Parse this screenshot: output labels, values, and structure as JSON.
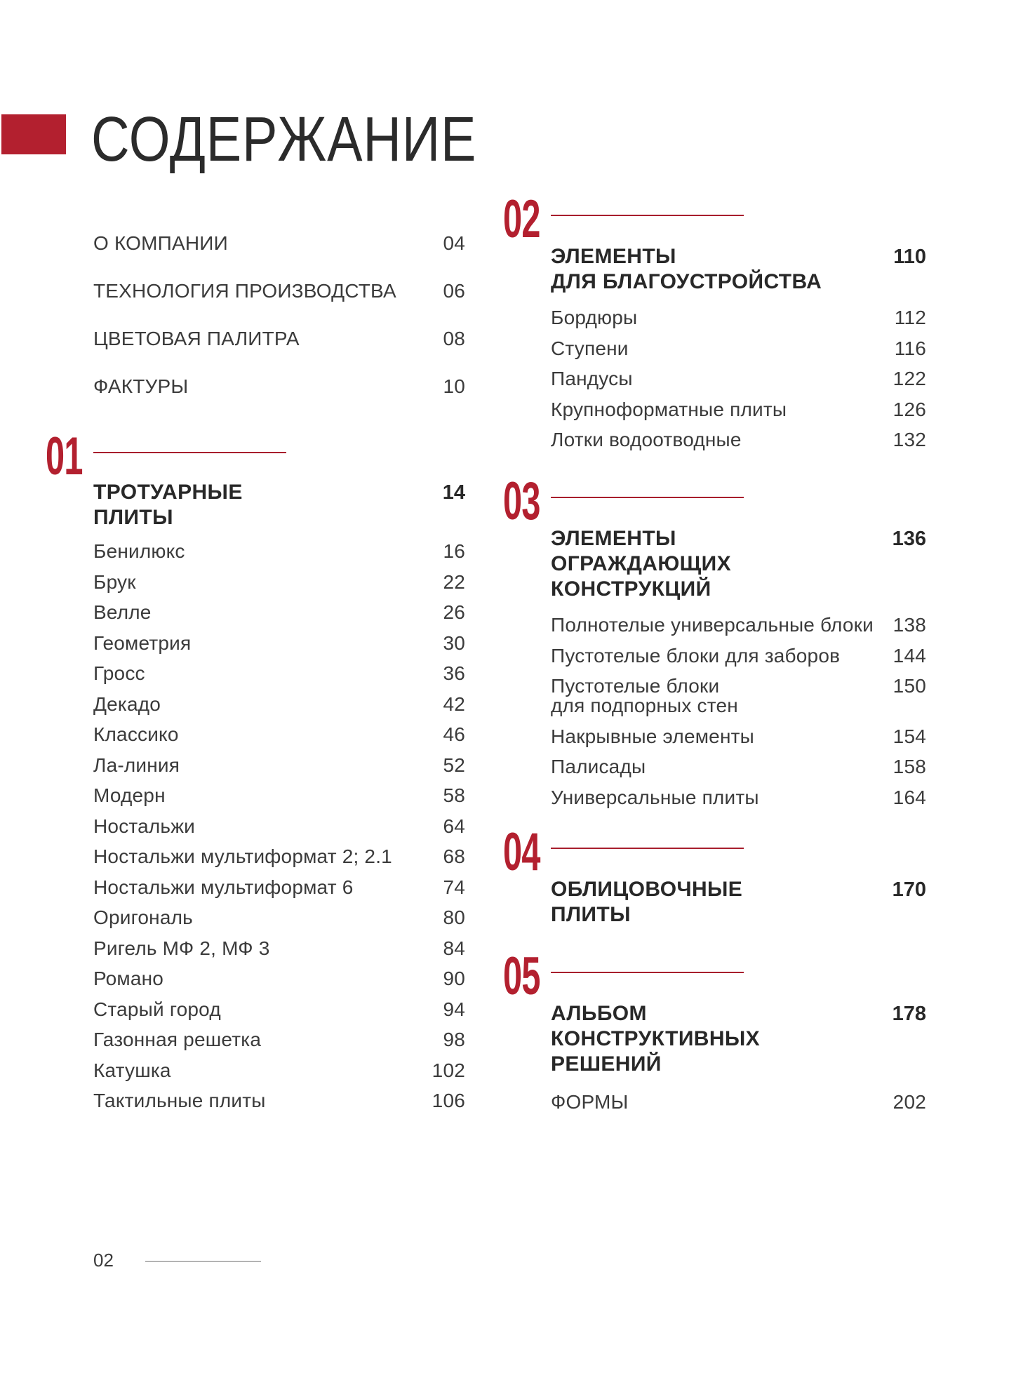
{
  "page": {
    "title": "СОДЕРЖАНИЕ",
    "footer_page": "02"
  },
  "accent_color": "#b3202f",
  "columns": [
    {
      "blocks": [
        {
          "type": "list",
          "variant": "intro",
          "items": [
            {
              "label": "О КОМПАНИИ",
              "page": "04"
            },
            {
              "label": "ТЕХНОЛОГИЯ ПРОИЗВОДСТВА",
              "page": "06"
            },
            {
              "label": "ЦВЕТОВАЯ ПАЛИТРА",
              "page": "08"
            },
            {
              "label": "ФАКТУРЫ",
              "page": "10"
            }
          ]
        },
        {
          "type": "section",
          "number": "01",
          "title": "ТРОТУАРНЫЕ\nПЛИТЫ",
          "page": "14",
          "items": [
            {
              "label": "Бенилюкс",
              "page": "16"
            },
            {
              "label": "Брук",
              "page": "22"
            },
            {
              "label": "Велле",
              "page": "26"
            },
            {
              "label": "Геометрия",
              "page": "30"
            },
            {
              "label": "Гросс",
              "page": "36"
            },
            {
              "label": "Декадо",
              "page": "42"
            },
            {
              "label": "Классико",
              "page": "46"
            },
            {
              "label": "Ла-линия",
              "page": "52"
            },
            {
              "label": "Модерн",
              "page": "58"
            },
            {
              "label": "Ностальжи",
              "page": "64"
            },
            {
              "label": "Ностальжи мультиформат 2; 2.1",
              "page": "68"
            },
            {
              "label": "Ностальжи мультиформат 6",
              "page": "74"
            },
            {
              "label": "Оригональ",
              "page": "80"
            },
            {
              "label": "Ригель МФ 2, МФ 3",
              "page": "84"
            },
            {
              "label": "Романо",
              "page": "90"
            },
            {
              "label": "Старый город",
              "page": "94"
            },
            {
              "label": "Газонная решетка",
              "page": "98"
            },
            {
              "label": "Катушка",
              "page": "102"
            },
            {
              "label": "Тактильные плиты",
              "page": "106"
            }
          ]
        }
      ]
    },
    {
      "blocks": [
        {
          "type": "section",
          "number": "02",
          "title": "ЭЛЕМЕНТЫ\nДЛЯ БЛАГОУСТРОЙСТВА",
          "page": "110",
          "items": [
            {
              "label": "Бордюры",
              "page": "112"
            },
            {
              "label": "Ступени",
              "page": "116"
            },
            {
              "label": "Пандусы",
              "page": "122"
            },
            {
              "label": "Крупноформатные плиты",
              "page": "126"
            },
            {
              "label": "Лотки водоотводные",
              "page": "132"
            }
          ]
        },
        {
          "type": "section",
          "number": "03",
          "title": "ЭЛЕМЕНТЫ\nОГРАЖДАЮЩИХ\nКОНСТРУКЦИЙ",
          "page": "136",
          "items": [
            {
              "label": "Полнотелые универсальные блоки",
              "page": "138"
            },
            {
              "label": "Пустотелые блоки для заборов",
              "page": "144"
            },
            {
              "label": "Пустотелые блоки\nдля подпорных стен",
              "page": "150"
            },
            {
              "label": "Накрывные элементы",
              "page": "154"
            },
            {
              "label": "Палисады",
              "page": "158"
            },
            {
              "label": "Универсальные плиты",
              "page": "164"
            }
          ]
        },
        {
          "type": "section",
          "number": "04",
          "title": "ОБЛИЦОВОЧНЫЕ\nПЛИТЫ",
          "page": "170",
          "items": []
        },
        {
          "type": "section",
          "number": "05",
          "title": "АЛЬБОМ\nКОНСТРУКТИВНЫХ\nРЕШЕНИЙ",
          "page": "178",
          "items": []
        },
        {
          "type": "list",
          "variant": "outro",
          "items": [
            {
              "label": "ФОРМЫ",
              "page": "202"
            }
          ]
        }
      ]
    }
  ]
}
